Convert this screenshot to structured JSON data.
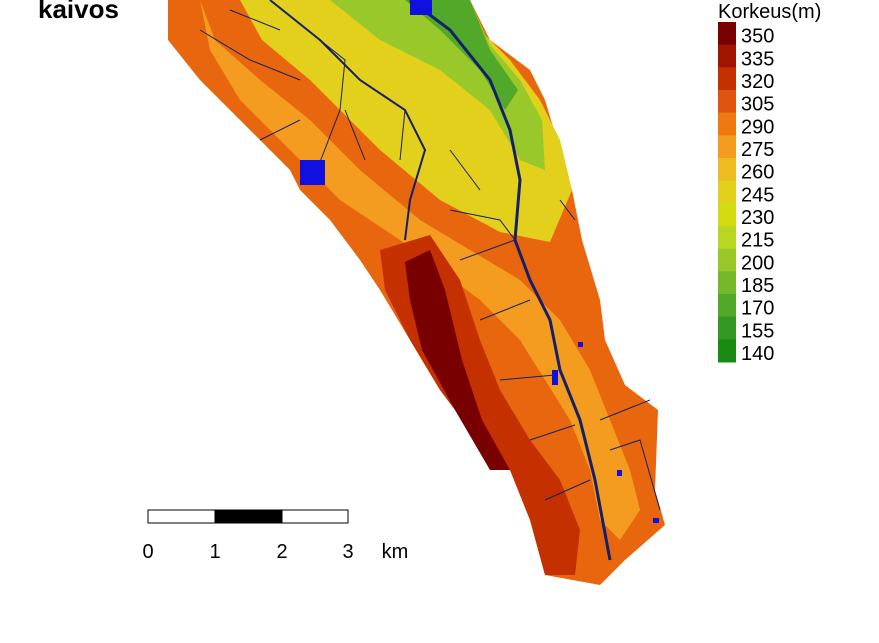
{
  "title": "kaivos",
  "legend": {
    "title": "Korkeus(m)",
    "items": [
      {
        "value": 350,
        "color": "#780000"
      },
      {
        "value": 335,
        "color": "#a01400"
      },
      {
        "value": 320,
        "color": "#c43000"
      },
      {
        "value": 305,
        "color": "#e05410"
      },
      {
        "value": 290,
        "color": "#f07810"
      },
      {
        "value": 275,
        "color": "#f49c20"
      },
      {
        "value": 260,
        "color": "#ecbc20"
      },
      {
        "value": 245,
        "color": "#e2d01c"
      },
      {
        "value": 230,
        "color": "#d2dc10"
      },
      {
        "value": 215,
        "color": "#b8d622"
      },
      {
        "value": 200,
        "color": "#98c82a"
      },
      {
        "value": 185,
        "color": "#76b82a"
      },
      {
        "value": 170,
        "color": "#52a828"
      },
      {
        "value": 155,
        "color": "#329a22"
      },
      {
        "value": 140,
        "color": "#1a8a12"
      }
    ]
  },
  "scale_bar": {
    "labels": [
      0,
      1,
      2,
      3
    ],
    "unit": "km"
  }
}
